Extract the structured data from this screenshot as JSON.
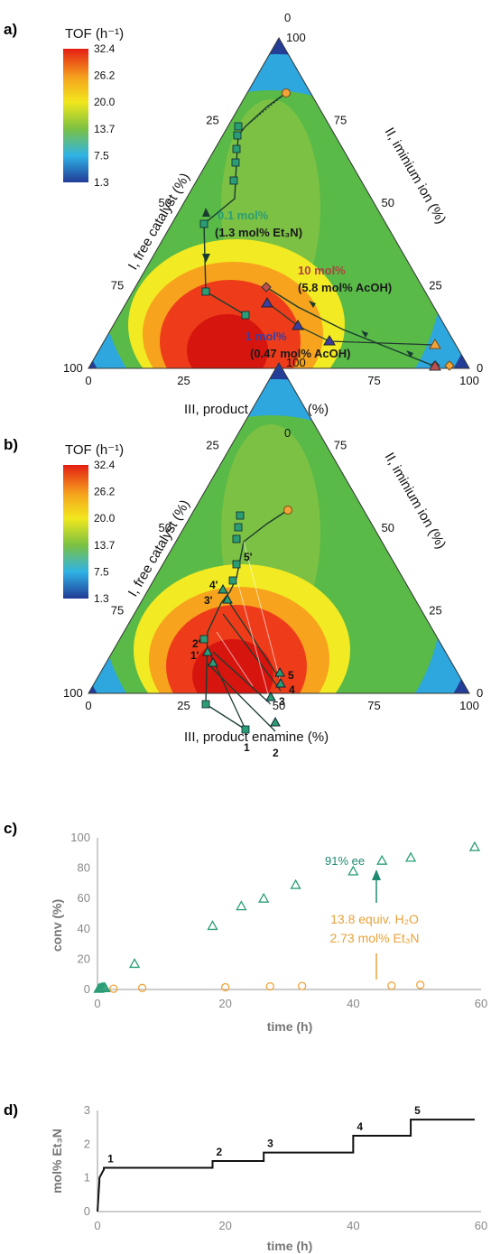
{
  "chart_data": [
    {
      "panel": "a)",
      "type": "ternary",
      "colorbar": {
        "title": "TOF (h⁻¹)",
        "ticks": [
          "32.4",
          "26.2",
          "20.0",
          "13.7",
          "7.5",
          "1.3"
        ],
        "colors": [
          "#E41E13",
          "#F5A51D",
          "#F1E71D",
          "#7BC142",
          "#2FB3E6",
          "#213B96"
        ]
      },
      "axes": {
        "left": {
          "label": "I, free catalyst (%)",
          "ticks": [
            "25",
            "50",
            "75",
            "100"
          ]
        },
        "right": {
          "label": "II, iminium ion (%)",
          "ticks": [
            "100",
            "75",
            "50",
            "25",
            "0"
          ]
        },
        "bottom": {
          "label": "III, product enamine (%)",
          "ticks": [
            "0",
            "25",
            "50",
            "75",
            "100"
          ]
        },
        "apex": "0"
      },
      "series": [
        {
          "name": "0.1 mol%",
          "subtitle": "(1.3 mol% Et₃N)",
          "color": "#2A9D75",
          "marker": "square",
          "points": [
            [
              50,
              31
            ],
            [
              51,
              29
            ],
            [
              50,
              27
            ],
            [
              51,
              24
            ],
            [
              52,
              21
            ],
            [
              53,
              18
            ],
            [
              68,
              30
            ],
            [
              74,
              30
            ],
            [
              68,
              34
            ],
            [
              74,
              37
            ]
          ]
        },
        {
          "name": "10 mol%",
          "subtitle": "(5.8 mol% AcOH)",
          "color": "#C0504D",
          "marker": "diamond",
          "points": [
            [
              2,
              8
            ],
            [
              5,
              47
            ],
            [
              3,
              93
            ]
          ]
        },
        {
          "name": "1 mol%",
          "subtitle": "(0.47 mol% AcOH)",
          "color": "#3B3EA0",
          "marker": "triangle",
          "points": [
            [
              7,
              3
            ],
            [
              10,
              35
            ],
            [
              2,
              58
            ],
            [
              7,
              23
            ]
          ]
        }
      ],
      "start_point": {
        "color": "#F2A33A",
        "marker": "circle"
      }
    },
    {
      "panel": "b)",
      "type": "ternary",
      "colorbar": {
        "title": "TOF (h⁻¹)",
        "ticks": [
          "32.4",
          "26.2",
          "20.0",
          "13.7",
          "7.5",
          "1.3"
        ]
      },
      "axes": {
        "left": {
          "label": "I, free catalyst (%)",
          "ticks": [
            "25",
            "50",
            "75",
            "100"
          ]
        },
        "right": {
          "label": "II, iminium ion (%)",
          "ticks": [
            "100",
            "75",
            "50",
            "25",
            "0"
          ]
        },
        "bottom": {
          "label": "III, product enamine (%)",
          "ticks": [
            "0",
            "25",
            "50",
            "75",
            "100"
          ]
        },
        "apex": "0"
      },
      "point_labels": [
        "1",
        "2",
        "3",
        "4",
        "5",
        "1'",
        "2'",
        "3'",
        "4'",
        "5'"
      ]
    },
    {
      "panel": "c)",
      "type": "scatter",
      "xlabel": "time (h)",
      "ylabel": "conv (%)",
      "xlim": [
        0,
        60
      ],
      "ylim": [
        0,
        100
      ],
      "xticks": [
        "0",
        "20",
        "40",
        "60"
      ],
      "yticks": [
        "0",
        "20",
        "40",
        "60",
        "80",
        "100"
      ],
      "series": [
        {
          "color": "#2A9D75",
          "marker": "triangle",
          "x": [
            0.2,
            0.4,
            0.6,
            0.8,
            1.0,
            1.2,
            5.8,
            18,
            22.5,
            26,
            31,
            40,
            44.5,
            49,
            59
          ],
          "y": [
            0.5,
            0.8,
            1.0,
            1.2,
            1.4,
            1.0,
            17,
            42,
            55,
            60,
            69,
            78,
            85,
            87,
            94
          ]
        },
        {
          "color": "#F2A33A",
          "marker": "circle",
          "x": [
            2.5,
            7,
            20,
            27,
            32,
            46,
            50.5
          ],
          "y": [
            0.5,
            1,
            1.5,
            2,
            2.3,
            2.5,
            3
          ]
        }
      ],
      "annotations": [
        "91% ee",
        "13.8 equiv. H₂O",
        "2.73 mol% Et₃N"
      ]
    },
    {
      "panel": "d)",
      "type": "line",
      "xlabel": "time (h)",
      "ylabel": "mol% Et₃N",
      "xlim": [
        0,
        60
      ],
      "ylim": [
        0,
        3
      ],
      "xticks": [
        "0",
        "20",
        "40",
        "60"
      ],
      "yticks": [
        "0",
        "1",
        "2",
        "3"
      ],
      "x": [
        0,
        0.3,
        0.3,
        1.0,
        1.0,
        18,
        18,
        26,
        26,
        40,
        40,
        49,
        49,
        59
      ],
      "y": [
        0,
        0.9,
        1.0,
        1.25,
        1.3,
        1.3,
        1.5,
        1.5,
        1.75,
        1.75,
        2.25,
        2.25,
        2.73,
        2.73
      ],
      "step_labels": [
        "1",
        "2",
        "3",
        "4",
        "5"
      ]
    }
  ]
}
